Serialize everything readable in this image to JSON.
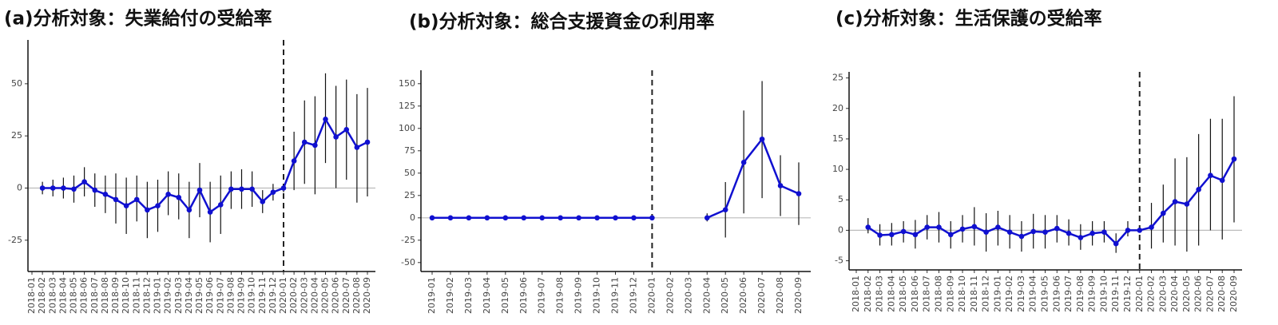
{
  "chart_data": [
    {
      "type": "line",
      "title": "(a)分析対象：失業給付の受給率",
      "color": "#1010d0",
      "categories": [
        "2018-01",
        "2018-02",
        "2018-03",
        "2018-04",
        "2018-05",
        "2018-06",
        "2018-07",
        "2018-08",
        "2018-09",
        "2018-10",
        "2018-11",
        "2018-12",
        "2019-01",
        "2019-02",
        "2019-03",
        "2019-04",
        "2019-05",
        "2019-06",
        "2019-07",
        "2019-08",
        "2019-09",
        "2019-10",
        "2019-11",
        "2019-12",
        "2020-01",
        "2020-02",
        "2020-03",
        "2020-04",
        "2020-05",
        "2020-06",
        "2020-07",
        "2020-08",
        "2020-09"
      ],
      "values": [
        null,
        0,
        0,
        0,
        -0.5,
        3,
        -1,
        -3,
        -5.5,
        -8.5,
        -5.5,
        -10.5,
        -8.5,
        -3,
        -4.5,
        -10.5,
        -1,
        -11.5,
        -8,
        -0.5,
        -0.5,
        -0.5,
        -6.5,
        -2,
        0,
        13,
        22,
        20.5,
        33,
        24.5,
        28,
        19.5,
        22
      ],
      "lower": [
        null,
        -3,
        -4,
        -5,
        -7,
        -4,
        -9,
        -12,
        -17,
        -22,
        -16,
        -24,
        -21,
        -13,
        -15,
        -24,
        -14,
        -26,
        -22,
        -10,
        -10,
        -9,
        -12,
        -6,
        -2,
        -1,
        2,
        -3,
        12,
        0,
        4,
        -7,
        -4
      ],
      "upper": [
        null,
        3,
        4,
        5,
        6,
        10,
        7,
        6,
        7,
        5,
        6,
        3,
        4,
        8,
        7,
        3,
        12,
        3,
        6,
        8,
        9,
        8,
        -1,
        2,
        2,
        27,
        42,
        44,
        55,
        49,
        52,
        45,
        48
      ],
      "ylim": [
        -40,
        71
      ],
      "yticks": [
        -25,
        0,
        25,
        50
      ],
      "reference_line": "2020-01",
      "zero_line": 0
    },
    {
      "type": "line",
      "title": "(b)分析対象：総合支援資金の利用率",
      "color": "#1010d0",
      "categories": [
        "2019-01",
        "2019-02",
        "2019-03",
        "2019-04",
        "2019-05",
        "2019-06",
        "2019-07",
        "2019-08",
        "2019-09",
        "2019-10",
        "2019-11",
        "2019-12",
        "2020-01",
        "2020-02",
        "2020-03",
        "2020-04",
        "2020-05",
        "2020-06",
        "2020-07",
        "2020-08",
        "2020-09"
      ],
      "values": [
        0,
        0,
        0,
        0,
        0,
        0,
        0,
        0,
        0,
        0,
        0,
        0,
        0,
        null,
        null,
        0,
        9,
        62,
        88,
        36,
        27
      ],
      "lower": [
        0,
        0,
        0,
        0,
        0,
        0,
        0,
        0,
        0,
        0,
        0,
        0,
        0,
        null,
        null,
        -4,
        -22,
        5,
        22,
        2,
        -8
      ],
      "upper": [
        0,
        0,
        0,
        0,
        0,
        0,
        0,
        0,
        0,
        0,
        0,
        0,
        0,
        null,
        null,
        5,
        40,
        120,
        153,
        70,
        62
      ],
      "ylim": [
        -60,
        165
      ],
      "yticks": [
        -50,
        -25,
        0,
        25,
        50,
        75,
        100,
        125,
        150
      ],
      "reference_line": "2020-01",
      "zero_line": 0
    },
    {
      "type": "line",
      "title": "(c)分析対象：生活保護の受給率",
      "color": "#1010d0",
      "categories": [
        "2018-01",
        "2018-02",
        "2018-03",
        "2018-04",
        "2018-05",
        "2018-06",
        "2018-07",
        "2018-08",
        "2018-09",
        "2018-10",
        "2018-11",
        "2018-12",
        "2019-01",
        "2019-02",
        "2019-03",
        "2019-04",
        "2019-05",
        "2019-06",
        "2019-07",
        "2019-08",
        "2019-09",
        "2019-10",
        "2019-11",
        "2019-12",
        "2020-01",
        "2020-02",
        "2020-03",
        "2020-04",
        "2020-05",
        "2020-06",
        "2020-07",
        "2020-08",
        "2020-09"
      ],
      "values": [
        null,
        0.5,
        -0.8,
        -0.7,
        -0.2,
        -0.7,
        0.5,
        0.5,
        -0.7,
        0.2,
        0.6,
        -0.3,
        0.5,
        -0.3,
        -1,
        -0.2,
        -0.3,
        0.3,
        -0.5,
        -1.2,
        -0.5,
        -0.3,
        -2.2,
        0,
        0,
        0.5,
        2.8,
        4.7,
        4.3,
        6.7,
        9,
        8.2,
        11.7
      ],
      "lower": [
        null,
        -0.5,
        -2.5,
        -2.5,
        -2,
        -3,
        -1.5,
        -2,
        -3,
        -2,
        -2.5,
        -3.5,
        -2.5,
        -3,
        -3.5,
        -3,
        -3,
        -2,
        -2.5,
        -3.2,
        -2.5,
        -2,
        -3.7,
        -1,
        -0.3,
        -3,
        -2,
        -2.5,
        -3.5,
        -2.5,
        0,
        -1.5,
        1.3
      ],
      "upper": [
        null,
        2,
        1,
        1.2,
        1.5,
        1.7,
        2.5,
        3,
        1.5,
        2.5,
        3.8,
        2.8,
        3.2,
        2.5,
        1.5,
        2.7,
        2.5,
        2.5,
        1.8,
        1,
        1.5,
        1.5,
        -0.5,
        1.5,
        0.3,
        4.5,
        7.5,
        11.8,
        12,
        15.8,
        18.3,
        18.3,
        22
      ],
      "ylim": [
        -6.5,
        26
      ],
      "yticks": [
        -5,
        0,
        5,
        10,
        15,
        20,
        25
      ],
      "reference_line": "2020-01",
      "zero_line": 0
    }
  ]
}
